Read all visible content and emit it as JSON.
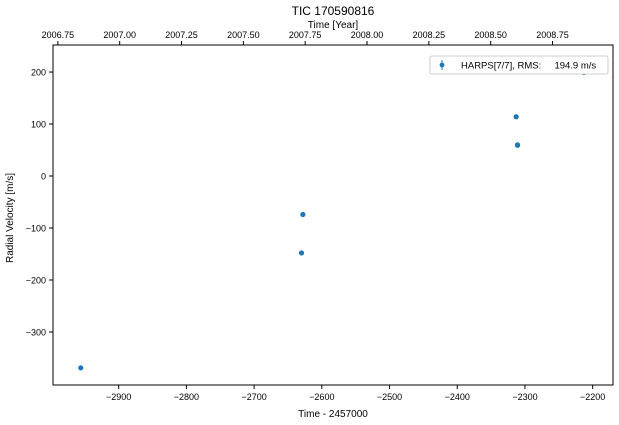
{
  "chart_data": {
    "type": "scatter",
    "title": "TIC 170590816",
    "xlabel": "Time - 2457000",
    "ylabel": "Radial Velocity [m/s]",
    "top_xlabel": "Time [Year]",
    "xlim": [
      -2997,
      -2170
    ],
    "ylim": [
      -402,
      252
    ],
    "xticks": [
      -2900,
      -2800,
      -2700,
      -2600,
      -2500,
      -2400,
      -2300,
      -2200
    ],
    "xtick_labels": [
      "−2900",
      "−2800",
      "−2700",
      "−2600",
      "−2500",
      "−2400",
      "−2300",
      "−2200"
    ],
    "yticks": [
      -300,
      -200,
      -100,
      0,
      100,
      200
    ],
    "ytick_labels": [
      "−300",
      "−200",
      "−100",
      "0",
      "100",
      "200"
    ],
    "top_ticks": [
      2006.75,
      2007.0,
      2007.25,
      2007.5,
      2007.75,
      2008.0,
      2008.25,
      2008.5,
      2008.75
    ],
    "top_tick_labels": [
      "2006.75",
      "2007.00",
      "2007.25",
      "2007.50",
      "2007.75",
      "2008.00",
      "2008.25",
      "2008.50",
      "2008.75"
    ],
    "series": [
      {
        "name": "HARPS[7/7], RMS:     194.9 m/s",
        "color": "#1f77b4",
        "x": [
          -2956,
          -2630,
          -2628,
          -2313,
          -2311,
          -2311,
          -2213
        ],
        "y": [
          -369,
          -148,
          -74,
          114,
          60,
          59,
          199
        ]
      }
    ],
    "legend_position": "top-right",
    "grid": false
  }
}
